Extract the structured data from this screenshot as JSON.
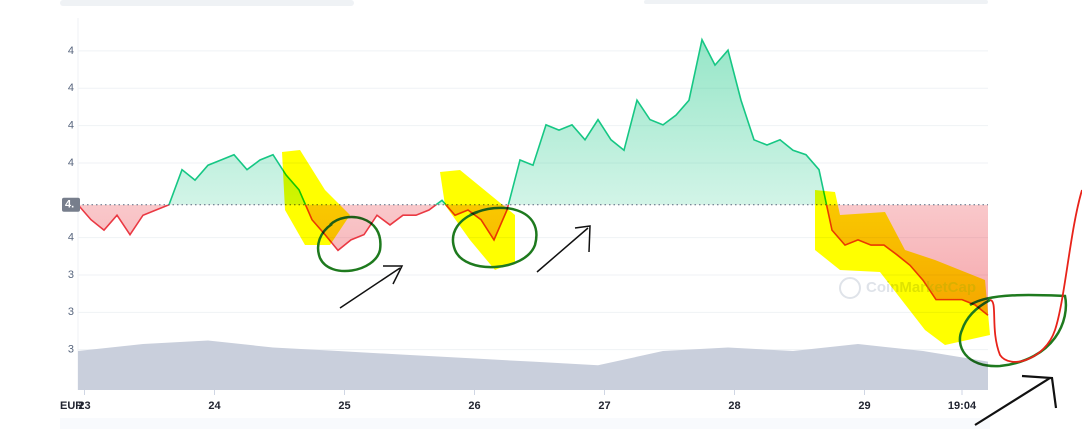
{
  "chart_data": {
    "type": "line",
    "currency_label": "EUR",
    "watermark": "CoinMarketCap",
    "x": [
      22.95,
      23.05,
      23.15,
      23.25,
      23.35,
      23.45,
      23.55,
      23.65,
      23.75,
      23.85,
      23.95,
      24.05,
      24.15,
      24.25,
      24.35,
      24.45,
      24.55,
      24.65,
      24.75,
      24.85,
      24.95,
      25.05,
      25.15,
      25.25,
      25.35,
      25.45,
      25.55,
      25.65,
      25.75,
      25.85,
      25.95,
      26.05,
      26.15,
      26.25,
      26.35,
      26.45,
      26.55,
      26.65,
      26.75,
      26.85,
      26.95,
      27.05,
      27.15,
      27.25,
      27.35,
      27.45,
      27.55,
      27.65,
      27.75,
      27.85,
      27.95,
      28.05,
      28.15,
      28.25,
      28.35,
      28.45,
      28.55,
      28.65,
      28.75,
      28.85,
      28.95,
      29.05,
      29.15,
      29.25,
      29.35,
      29.45,
      29.55,
      29.65,
      29.75,
      29.85,
      29.95
    ],
    "series": [
      {
        "color": "#16c784",
        "color_below": "#ea3943",
        "values": [
          4.044,
          4.024,
          4.01,
          4.03,
          4.004,
          4.03,
          4.037,
          4.044,
          4.091,
          4.077,
          4.097,
          4.104,
          4.111,
          4.091,
          4.104,
          4.111,
          4.084,
          4.064,
          4.024,
          4.004,
          3.983,
          3.997,
          4.004,
          4.03,
          4.017,
          4.03,
          4.03,
          4.037,
          4.05,
          4.03,
          4.037,
          4.024,
          3.997,
          4.037,
          4.104,
          4.097,
          4.151,
          4.144,
          4.151,
          4.131,
          4.158,
          4.131,
          4.117,
          4.184,
          4.158,
          4.151,
          4.164,
          4.184,
          4.265,
          4.231,
          4.251,
          4.184,
          4.131,
          4.124,
          4.131,
          4.117,
          4.111,
          4.091,
          4.01,
          3.99,
          3.997,
          3.99,
          3.99,
          3.977,
          3.963,
          3.943,
          3.917,
          3.917,
          3.917,
          3.91,
          3.896
        ]
      },
      {
        "axis": "y2",
        "color": "#c9cfdc",
        "x": [
          22.95,
          23.45,
          23.95,
          24.45,
          24.95,
          25.45,
          25.95,
          26.45,
          26.95,
          27.45,
          27.95,
          28.45,
          28.95,
          29.45,
          29.95
        ],
        "values": [
          11,
          13,
          14,
          12,
          11,
          10,
          9,
          8,
          7,
          11,
          12,
          11,
          13,
          11,
          8
        ]
      }
    ],
    "current_price": {
      "value": 4.044,
      "label": "4."
    },
    "xlim": [
      22.95,
      29.95
    ],
    "xticks": [
      23,
      24,
      25,
      26,
      27,
      28,
      29,
      {
        "value": 29.75,
        "label": "19:04"
      }
    ],
    "ylim": [
      3.8,
      4.27
    ],
    "yticks": [
      {
        "value": 4.25,
        "label": "4"
      },
      {
        "value": 4.2,
        "label": "4"
      },
      {
        "value": 4.15,
        "label": "4"
      },
      {
        "value": 4.1,
        "label": "4"
      },
      {
        "value": 4.0,
        "label": "4"
      },
      {
        "value": 3.95,
        "label": "3"
      },
      {
        "value": 3.9,
        "label": "3"
      },
      {
        "value": 3.85,
        "label": "3"
      }
    ],
    "y2lim": [
      0,
      100
    ],
    "grid": true
  }
}
